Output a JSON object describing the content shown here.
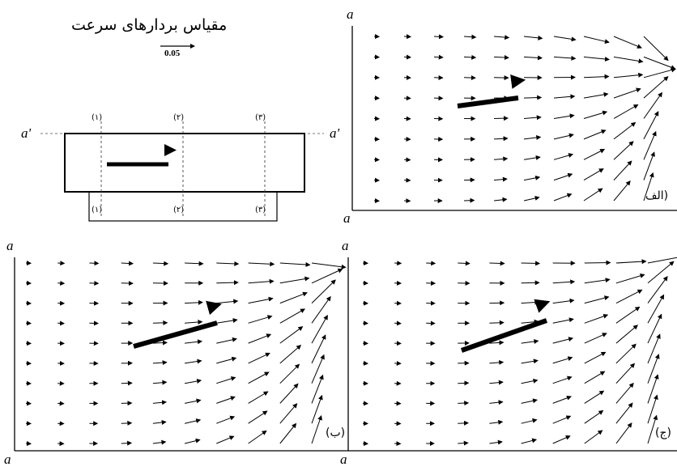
{
  "scale_title": "مقیاس بردارهای سرعت",
  "scale_value": "0.05",
  "schematic": {
    "section_labels_top": [
      "(۱)",
      "(۲)",
      "(۳)"
    ],
    "section_labels_bottom": [
      "(۱)",
      "(۲)",
      "(۳)"
    ],
    "axis_left": "a'",
    "axis_right": "a'"
  },
  "panels": [
    {
      "label": "الف)",
      "top_axis": "a",
      "bottom_axis": "a"
    },
    {
      "label": "(ب)",
      "top_axis": "a",
      "bottom_axis": "a"
    },
    {
      "label": "(ج)",
      "top_axis": "a",
      "bottom_axis": "a"
    }
  ]
}
